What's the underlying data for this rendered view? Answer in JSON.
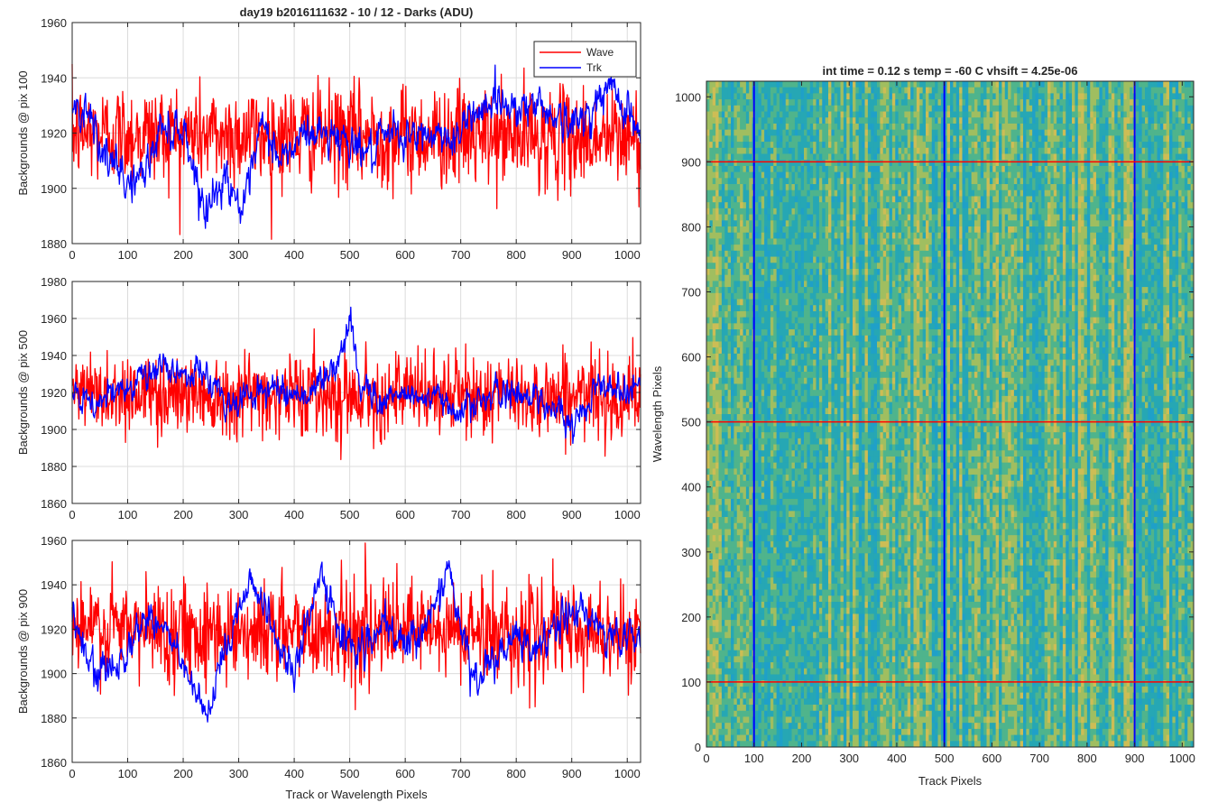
{
  "figure": {
    "suptitle": "day19 b2016111632 - 10 / 12 - Darks (ADU)"
  },
  "colors": {
    "wave": "#ff0000",
    "trk": "#0000ff",
    "grid": "#dcdcdc",
    "axis": "#262626",
    "marker_row": "#ff0000",
    "marker_col": "#0000ff"
  },
  "legend": {
    "location": "top-right",
    "entries": [
      "Wave",
      "Trk"
    ]
  },
  "chart_data": [
    {
      "type": "line",
      "ylabel": "Backgrounds @ pix 100",
      "xlabel": "",
      "xlim": [
        0,
        1024
      ],
      "ylim": [
        1880,
        1960
      ],
      "xticks": [
        0,
        100,
        200,
        300,
        400,
        500,
        600,
        700,
        800,
        900,
        1000
      ],
      "yticks": [
        1880,
        1900,
        1920,
        1940,
        1960
      ],
      "grid": true,
      "series": [
        {
          "name": "Wave",
          "mean": 1920,
          "noise_sd": 9,
          "trend": [
            [
              0,
              1920
            ],
            [
              1024,
              1918
            ]
          ]
        },
        {
          "name": "Trk",
          "mean": 1918,
          "noise_sd": 3,
          "trend": [
            [
              0,
              1928
            ],
            [
              30,
              1930
            ],
            [
              60,
              1910
            ],
            [
              100,
              1902
            ],
            [
              130,
              1905
            ],
            [
              160,
              1922
            ],
            [
              200,
              1922
            ],
            [
              240,
              1892
            ],
            [
              280,
              1905
            ],
            [
              310,
              1890
            ],
            [
              340,
              1922
            ],
            [
              380,
              1910
            ],
            [
              420,
              1920
            ],
            [
              460,
              1920
            ],
            [
              500,
              1918
            ],
            [
              540,
              1912
            ],
            [
              580,
              1920
            ],
            [
              620,
              1918
            ],
            [
              660,
              1920
            ],
            [
              700,
              1918
            ],
            [
              720,
              1928
            ],
            [
              760,
              1932
            ],
            [
              800,
              1930
            ],
            [
              850,
              1930
            ],
            [
              900,
              1922
            ],
            [
              940,
              1930
            ],
            [
              970,
              1936
            ],
            [
              1000,
              1930
            ],
            [
              1024,
              1918
            ]
          ]
        }
      ]
    },
    {
      "type": "line",
      "ylabel": "Backgrounds @ pix 500",
      "xlabel": "",
      "xlim": [
        0,
        1024
      ],
      "ylim": [
        1860,
        1980
      ],
      "xticks": [
        0,
        100,
        200,
        300,
        400,
        500,
        600,
        700,
        800,
        900,
        1000
      ],
      "yticks": [
        1860,
        1880,
        1900,
        1920,
        1940,
        1960,
        1980
      ],
      "grid": true,
      "series": [
        {
          "name": "Wave",
          "mean": 1920,
          "noise_sd": 11,
          "trend": [
            [
              0,
              1920
            ],
            [
              1024,
              1918
            ]
          ]
        },
        {
          "name": "Trk",
          "mean": 1922,
          "noise_sd": 3.5,
          "trend": [
            [
              0,
              1918
            ],
            [
              40,
              1912
            ],
            [
              80,
              1920
            ],
            [
              120,
              1930
            ],
            [
              180,
              1932
            ],
            [
              240,
              1930
            ],
            [
              280,
              1912
            ],
            [
              320,
              1920
            ],
            [
              380,
              1922
            ],
            [
              420,
              1918
            ],
            [
              480,
              1935
            ],
            [
              500,
              1958
            ],
            [
              520,
              1925
            ],
            [
              560,
              1915
            ],
            [
              600,
              1920
            ],
            [
              660,
              1915
            ],
            [
              700,
              1912
            ],
            [
              760,
              1918
            ],
            [
              820,
              1920
            ],
            [
              880,
              1910
            ],
            [
              900,
              1898
            ],
            [
              940,
              1925
            ],
            [
              980,
              1922
            ],
            [
              1024,
              1925
            ]
          ]
        }
      ]
    },
    {
      "type": "line",
      "ylabel": "Backgrounds @ pix 900",
      "xlabel": "Track or Wavelength Pixels",
      "xlim": [
        0,
        1024
      ],
      "ylim": [
        1860,
        1960
      ],
      "xticks": [
        0,
        100,
        200,
        300,
        400,
        500,
        600,
        700,
        800,
        900,
        1000
      ],
      "yticks": [
        1860,
        1880,
        1900,
        1920,
        1940,
        1960
      ],
      "grid": true,
      "series": [
        {
          "name": "Wave",
          "mean": 1920,
          "noise_sd": 11,
          "trend": [
            [
              0,
              1920
            ],
            [
              1024,
              1918
            ]
          ]
        },
        {
          "name": "Trk",
          "mean": 1915,
          "noise_sd": 3.5,
          "trend": [
            [
              0,
              1925
            ],
            [
              40,
              1898
            ],
            [
              80,
              1905
            ],
            [
              140,
              1928
            ],
            [
              180,
              1915
            ],
            [
              240,
              1878
            ],
            [
              300,
              1930
            ],
            [
              320,
              1945
            ],
            [
              360,
              1920
            ],
            [
              400,
              1900
            ],
            [
              450,
              1945
            ],
            [
              480,
              1920
            ],
            [
              520,
              1910
            ],
            [
              560,
              1920
            ],
            [
              600,
              1912
            ],
            [
              640,
              1925
            ],
            [
              680,
              1945
            ],
            [
              720,
              1898
            ],
            [
              760,
              1905
            ],
            [
              800,
              1915
            ],
            [
              840,
              1910
            ],
            [
              880,
              1925
            ],
            [
              920,
              1928
            ],
            [
              960,
              1918
            ],
            [
              1000,
              1915
            ],
            [
              1024,
              1918
            ]
          ]
        }
      ]
    },
    {
      "type": "heatmap",
      "title": "int time = 0.12 s    temp = -60 C    vhsift = 4.25e-06",
      "xlabel": "Track Pixels",
      "ylabel": "Wavelength Pixels",
      "xlim": [
        0,
        1024
      ],
      "ylim": [
        0,
        1024
      ],
      "xticks": [
        0,
        100,
        200,
        300,
        400,
        500,
        600,
        700,
        800,
        900,
        1000
      ],
      "yticks": [
        0,
        100,
        200,
        300,
        400,
        500,
        600,
        700,
        800,
        900,
        1000
      ],
      "colormap": [
        "#1fa0c8",
        "#26a7b4",
        "#4fb48c",
        "#a0be60",
        "#cdbd55"
      ],
      "red_rows": [
        100,
        500,
        900
      ],
      "blue_cols": [
        100,
        500,
        900
      ]
    }
  ]
}
